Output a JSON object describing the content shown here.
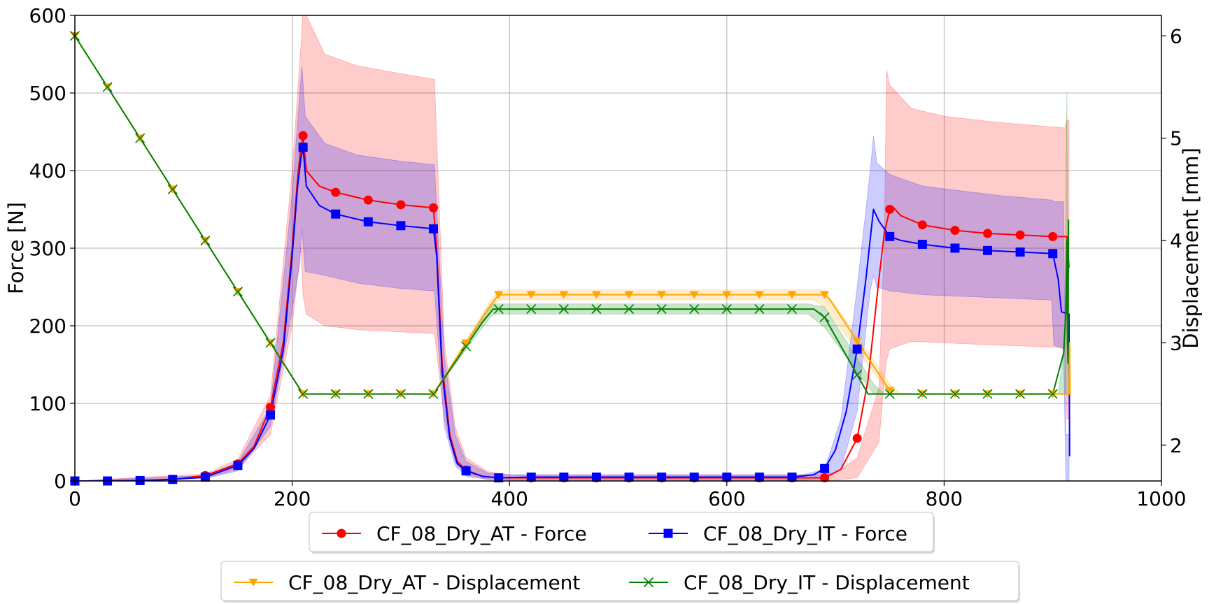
{
  "chart_data": {
    "type": "line",
    "title": "",
    "xlabel": "",
    "ylabel": "Force [N]",
    "y2label": "Displacement [mm]",
    "xlim": [
      0,
      1000
    ],
    "ylim": [
      0,
      600
    ],
    "y2lim": [
      1.65,
      6.2
    ],
    "xticks": [
      "0",
      "200",
      "400",
      "600",
      "800",
      "1000"
    ],
    "yticks": [
      "0",
      "100",
      "200",
      "300",
      "400",
      "500",
      "600"
    ],
    "y2ticks": [
      "2",
      "3",
      "4",
      "5",
      "6"
    ],
    "grid": true,
    "legend_position": "bottom",
    "series": [
      {
        "name": "CF_08_Dry_AT - Force",
        "axis": "left",
        "color": "#ff0000",
        "marker": "circle",
        "x": [
          0,
          30,
          60,
          90,
          120,
          150,
          165,
          180,
          192,
          200,
          205,
          208,
          210,
          213,
          225,
          240,
          270,
          300,
          330,
          333,
          338,
          345,
          352,
          360,
          375,
          390,
          420,
          450,
          480,
          510,
          540,
          570,
          600,
          630,
          660,
          690,
          705,
          720,
          730,
          740,
          745,
          750,
          753,
          760,
          780,
          810,
          840,
          870,
          900,
          913,
          915
        ],
        "y": [
          0,
          0,
          0.5,
          2,
          7,
          22,
          45,
          95,
          180,
          300,
          390,
          430,
          445,
          400,
          380,
          372,
          362,
          356,
          352,
          300,
          150,
          60,
          25,
          14,
          6,
          4,
          4,
          4,
          4,
          4,
          4,
          4,
          4,
          4,
          4,
          4,
          15,
          55,
          130,
          260,
          320,
          350,
          353,
          342,
          330,
          323,
          319,
          317,
          315,
          315,
          275
        ],
        "markers_x": [
          0,
          30,
          60,
          90,
          120,
          150,
          180,
          210,
          240,
          270,
          300,
          330,
          360,
          390,
          420,
          450,
          480,
          510,
          540,
          570,
          600,
          630,
          660,
          690,
          720,
          750,
          780,
          810,
          840,
          870,
          900
        ],
        "band_x": [
          0,
          120,
          150,
          180,
          200,
          208,
          210,
          213,
          230,
          260,
          300,
          329,
          331,
          340,
          350,
          360,
          380,
          400,
          680,
          700,
          720,
          740,
          745,
          747,
          750,
          770,
          800,
          850,
          911,
          913,
          915
        ],
        "band_upper": [
          0,
          9,
          28,
          110,
          400,
          560,
          610,
          600,
          550,
          535,
          525,
          518,
          518,
          180,
          70,
          30,
          12,
          8,
          8,
          10,
          30,
          120,
          310,
          530,
          510,
          480,
          470,
          462,
          455,
          465,
          465
        ],
        "band_lower": [
          0,
          4,
          15,
          60,
          200,
          300,
          240,
          215,
          200,
          195,
          192,
          190,
          190,
          80,
          25,
          8,
          2,
          1,
          1,
          1,
          4,
          50,
          130,
          155,
          170,
          180,
          178,
          175,
          172,
          80,
          80
        ]
      },
      {
        "name": "CF_08_Dry_IT - Force",
        "axis": "left",
        "color": "#0000ff",
        "marker": "square",
        "x": [
          0,
          30,
          60,
          90,
          120,
          150,
          165,
          180,
          192,
          200,
          205,
          208,
          210,
          213,
          225,
          240,
          270,
          300,
          330,
          333,
          338,
          345,
          352,
          360,
          375,
          390,
          420,
          450,
          480,
          510,
          540,
          570,
          600,
          630,
          660,
          680,
          690,
          700,
          710,
          720,
          728,
          735,
          740,
          750,
          760,
          780,
          810,
          840,
          870,
          900,
          905,
          908,
          915,
          915.5
        ],
        "y": [
          0,
          0,
          0.5,
          2,
          5,
          20,
          42,
          85,
          170,
          290,
          380,
          415,
          430,
          380,
          355,
          344,
          334,
          329,
          325,
          290,
          140,
          55,
          22,
          13,
          6,
          4,
          5,
          5,
          5,
          5,
          5,
          5,
          5,
          5,
          5,
          8,
          16,
          40,
          90,
          170,
          260,
          350,
          335,
          315,
          310,
          305,
          300,
          297,
          295,
          293,
          260,
          218,
          215,
          32
        ],
        "markers_x": [
          0,
          30,
          60,
          90,
          120,
          150,
          180,
          210,
          240,
          270,
          300,
          330,
          360,
          390,
          420,
          450,
          480,
          510,
          540,
          570,
          600,
          630,
          660,
          690,
          720,
          750,
          780,
          810,
          840,
          870,
          900
        ],
        "band_x": [
          0,
          120,
          150,
          180,
          200,
          207,
          209,
          212,
          230,
          260,
          300,
          329,
          331,
          340,
          350,
          360,
          380,
          400,
          670,
          690,
          705,
          720,
          732,
          735,
          738,
          750,
          780,
          850,
          899,
          901,
          910,
          912,
          915
        ],
        "band_upper": [
          0,
          7,
          24,
          95,
          370,
          500,
          535,
          470,
          435,
          420,
          412,
          408,
          408,
          160,
          60,
          25,
          10,
          8,
          8,
          15,
          80,
          250,
          400,
          445,
          410,
          395,
          380,
          368,
          362,
          360,
          360,
          60,
          60
        ],
        "band_lower": [
          0,
          3,
          13,
          70,
          220,
          280,
          325,
          270,
          265,
          255,
          248,
          245,
          245,
          70,
          20,
          6,
          2,
          1,
          1,
          3,
          15,
          90,
          245,
          265,
          250,
          245,
          240,
          236,
          233,
          175,
          170,
          0,
          0
        ]
      },
      {
        "name": "CF_08_Dry_AT - Displacement",
        "axis": "right",
        "color": "#ffa500",
        "marker": "triangle_down",
        "x": [
          0,
          210,
          330,
          380,
          390,
          690,
          695,
          752,
          912,
          915,
          915.5,
          916
        ],
        "y": [
          6.0,
          2.5,
          2.5,
          3.33,
          3.47,
          3.47,
          3.42,
          2.5,
          2.5,
          2.5,
          3.0,
          2.5
        ],
        "markers_x": [
          0,
          30,
          60,
          90,
          120,
          150,
          180,
          210,
          240,
          270,
          300,
          330,
          360,
          390,
          420,
          450,
          480,
          510,
          540,
          570,
          600,
          630,
          660,
          690,
          720,
          750,
          780,
          810,
          840,
          870,
          900
        ],
        "band_x": [
          0,
          210,
          330,
          380,
          390,
          680,
          690,
          750,
          760,
          915
        ],
        "band_upper": [
          6.0,
          2.5,
          2.5,
          3.37,
          3.52,
          3.52,
          3.52,
          2.6,
          2.5,
          2.5
        ],
        "band_lower": [
          6.0,
          2.5,
          2.5,
          3.29,
          3.42,
          3.42,
          3.35,
          2.5,
          2.5,
          2.5
        ]
      },
      {
        "name": "CF_08_Dry_IT - Displacement",
        "axis": "right",
        "color": "#008000",
        "marker": "x",
        "x": [
          0,
          210,
          330,
          375,
          385,
          680,
          690,
          730,
          740,
          900,
          905,
          910,
          912,
          913,
          913.5,
          914,
          914.5,
          915
        ],
        "y": [
          6.0,
          2.5,
          2.5,
          3.2,
          3.33,
          3.33,
          3.25,
          2.5,
          2.5,
          2.5,
          2.7,
          2.9,
          3.3,
          4.0,
          3.0,
          2.8,
          4.2,
          4.2
        ],
        "markers_x": [
          0,
          30,
          60,
          90,
          120,
          150,
          180,
          210,
          240,
          270,
          300,
          330,
          360,
          390,
          420,
          450,
          480,
          510,
          540,
          570,
          600,
          630,
          660,
          690,
          720,
          750,
          780,
          810,
          840,
          870,
          900
        ],
        "band_x": [
          0,
          210,
          330,
          375,
          385,
          675,
          690,
          735,
          745,
          905,
          911,
          912,
          913,
          914,
          915
        ],
        "band_upper": [
          6.0,
          2.5,
          2.5,
          3.25,
          3.38,
          3.38,
          3.35,
          2.6,
          2.5,
          2.5,
          3.0,
          4.5,
          5.45,
          3.0,
          2.5
        ],
        "band_lower": [
          6.0,
          2.5,
          2.5,
          3.15,
          3.28,
          3.28,
          3.15,
          2.5,
          2.5,
          2.5,
          2.5,
          2.5,
          2.5,
          2.5,
          2.5
        ]
      }
    ],
    "legend_rows": [
      [
        "CF_08_Dry_AT - Force",
        "CF_08_Dry_IT - Force"
      ],
      [
        "CF_08_Dry_AT - Displacement",
        "CF_08_Dry_IT - Displacement"
      ]
    ]
  }
}
